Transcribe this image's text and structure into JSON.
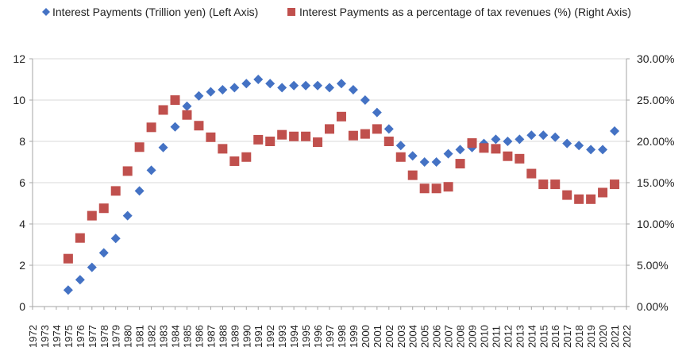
{
  "chart_data": {
    "type": "scatter",
    "title": "",
    "xlabel": "",
    "ylabel_left": "",
    "ylabel_right": "",
    "legend": {
      "placement": "top",
      "entries": [
        "Interest Payments (Trillion yen) (Left Axis)",
        "Interest Payments as a percentage of tax revenues (%) (Right Axis)"
      ]
    },
    "x_categories": [
      "1972",
      "1973",
      "1974",
      "1975",
      "1976",
      "1977",
      "1978",
      "1979",
      "1980",
      "1981",
      "1982",
      "1983",
      "1984",
      "1985",
      "1986",
      "1987",
      "1988",
      "1989",
      "1990",
      "1991",
      "1992",
      "1993",
      "1994",
      "1995",
      "1996",
      "1997",
      "1998",
      "1999",
      "2000",
      "2001",
      "2002",
      "2003",
      "2004",
      "2005",
      "2006",
      "2007",
      "2008",
      "2009",
      "2010",
      "2011",
      "2012",
      "2013",
      "2014",
      "2015",
      "2016",
      "2017",
      "2018",
      "2019",
      "2020",
      "2021",
      "2022"
    ],
    "left_axis": {
      "ylim": [
        0,
        12
      ],
      "ticks": [
        {
          "value": 0,
          "label": "0"
        },
        {
          "value": 2,
          "label": "2"
        },
        {
          "value": 4,
          "label": "4"
        },
        {
          "value": 6,
          "label": "6"
        },
        {
          "value": 8,
          "label": "8"
        },
        {
          "value": 10,
          "label": "10"
        },
        {
          "value": 12,
          "label": "12"
        }
      ]
    },
    "right_axis": {
      "ylim": [
        0,
        30
      ],
      "ticks": [
        {
          "value": 0,
          "label": "0.00%"
        },
        {
          "value": 5,
          "label": "5.00%"
        },
        {
          "value": 10,
          "label": "10.00%"
        },
        {
          "value": 15,
          "label": "15.00%"
        },
        {
          "value": 20,
          "label": "20.00%"
        },
        {
          "value": 25,
          "label": "25.00%"
        },
        {
          "value": 30,
          "label": "30.00%"
        }
      ]
    },
    "grid": {
      "horizontal": true,
      "vertical": false,
      "color": "#d9d9d9"
    },
    "series": [
      {
        "name": "Interest Payments (Trillion yen) (Left Axis)",
        "axis": "left",
        "marker": "diamond",
        "color": "#4472c4",
        "x": [
          "1975",
          "1976",
          "1977",
          "1978",
          "1979",
          "1980",
          "1981",
          "1982",
          "1983",
          "1984",
          "1985",
          "1986",
          "1987",
          "1988",
          "1989",
          "1990",
          "1991",
          "1992",
          "1993",
          "1994",
          "1995",
          "1996",
          "1997",
          "1998",
          "1999",
          "2000",
          "2001",
          "2002",
          "2003",
          "2004",
          "2005",
          "2006",
          "2007",
          "2008",
          "2009",
          "2010",
          "2011",
          "2012",
          "2013",
          "2014",
          "2015",
          "2016",
          "2017",
          "2018",
          "2019",
          "2020",
          "2021"
        ],
        "values": [
          0.8,
          1.3,
          1.9,
          2.6,
          3.3,
          4.4,
          5.6,
          6.6,
          7.7,
          8.7,
          9.7,
          10.2,
          10.4,
          10.5,
          10.6,
          10.8,
          11.0,
          10.8,
          10.6,
          10.7,
          10.7,
          10.7,
          10.6,
          10.8,
          10.5,
          10.0,
          9.4,
          8.6,
          7.8,
          7.3,
          7.0,
          7.0,
          7.4,
          7.6,
          7.7,
          7.9,
          8.1,
          8.0,
          8.1,
          8.3,
          8.3,
          8.2,
          7.9,
          7.8,
          7.6,
          7.6,
          8.5
        ]
      },
      {
        "name": "Interest Payments as a percentage of tax revenues (%) (Right Axis)",
        "axis": "right",
        "marker": "square",
        "color": "#c0504d",
        "x": [
          "1975",
          "1976",
          "1977",
          "1978",
          "1979",
          "1980",
          "1981",
          "1982",
          "1983",
          "1984",
          "1985",
          "1986",
          "1987",
          "1988",
          "1989",
          "1990",
          "1991",
          "1992",
          "1993",
          "1994",
          "1995",
          "1996",
          "1997",
          "1998",
          "1999",
          "2000",
          "2001",
          "2002",
          "2003",
          "2004",
          "2005",
          "2006",
          "2007",
          "2008",
          "2009",
          "2010",
          "2011",
          "2012",
          "2013",
          "2014",
          "2015",
          "2016",
          "2017",
          "2018",
          "2019",
          "2020",
          "2021"
        ],
        "values": [
          5.8,
          8.3,
          11.0,
          11.9,
          14.0,
          16.4,
          19.3,
          21.7,
          23.8,
          25.0,
          23.2,
          21.9,
          20.5,
          19.1,
          17.6,
          18.1,
          20.2,
          20.0,
          20.8,
          20.6,
          20.6,
          19.9,
          21.5,
          23.0,
          20.7,
          20.9,
          21.5,
          20.0,
          18.1,
          15.9,
          14.3,
          14.3,
          14.5,
          17.3,
          19.8,
          19.2,
          19.1,
          18.2,
          17.9,
          16.1,
          14.8,
          14.8,
          13.5,
          13.0,
          13.0,
          13.8,
          14.8
        ]
      }
    ]
  }
}
